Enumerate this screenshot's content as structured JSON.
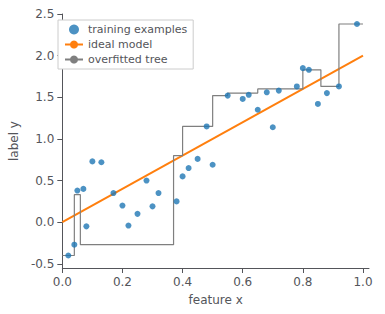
{
  "chart_data": {
    "type": "scatter",
    "xlabel": "feature x",
    "ylabel": "label y",
    "xlim": [
      0.0,
      1.02
    ],
    "ylim": [
      -0.55,
      2.5
    ],
    "xticks": [
      {
        "value": 0.0,
        "label": "0.0"
      },
      0.2,
      0.4,
      0.6,
      0.8,
      {
        "value": 1.0,
        "label": "1.0"
      }
    ],
    "yticks": [
      -0.5,
      {
        "value": 0.0,
        "label": "0.0"
      },
      0.5,
      {
        "value": 1.0,
        "label": "1.0"
      },
      1.5,
      {
        "value": 2.0,
        "label": "2.0"
      },
      2.5
    ],
    "grid": false,
    "legend": "upper left",
    "series": [
      {
        "name": "training examples",
        "type": "scatter",
        "marker": "circle",
        "color": "#1f77b4",
        "x": [
          0.02,
          0.04,
          0.05,
          0.07,
          0.08,
          0.1,
          0.13,
          0.17,
          0.2,
          0.22,
          0.25,
          0.28,
          0.3,
          0.32,
          0.38,
          0.4,
          0.42,
          0.45,
          0.48,
          0.5,
          0.55,
          0.6,
          0.62,
          0.65,
          0.68,
          0.7,
          0.72,
          0.78,
          0.8,
          0.82,
          0.85,
          0.88,
          0.92,
          0.98
        ],
        "values": [
          -0.4,
          -0.27,
          0.38,
          0.4,
          -0.05,
          0.73,
          0.72,
          0.35,
          0.2,
          -0.04,
          0.1,
          0.5,
          0.19,
          0.35,
          0.25,
          0.55,
          0.65,
          0.76,
          1.15,
          0.69,
          1.52,
          1.48,
          1.53,
          1.35,
          1.56,
          1.14,
          1.58,
          1.63,
          1.85,
          1.83,
          1.42,
          1.55,
          1.63,
          2.38
        ]
      },
      {
        "name": "ideal model",
        "type": "line",
        "color": "#ff7f0e",
        "x": [
          0.0,
          1.0
        ],
        "values": [
          0.0,
          2.0
        ]
      },
      {
        "name": "overfitted tree",
        "type": "line",
        "color": "#7f7f7f",
        "x": [
          0.0,
          0.04,
          0.04,
          0.06,
          0.06,
          0.37,
          0.37,
          0.4,
          0.4,
          0.5,
          0.5,
          0.55,
          0.55,
          0.65,
          0.65,
          0.8,
          0.8,
          0.86,
          0.86,
          0.92,
          0.92,
          1.0
        ],
        "values": [
          -0.4,
          -0.4,
          0.33,
          0.33,
          -0.27,
          -0.27,
          0.8,
          0.8,
          1.15,
          1.15,
          1.52,
          1.52,
          1.55,
          1.55,
          1.6,
          1.6,
          1.83,
          1.83,
          1.63,
          1.63,
          2.38,
          2.38
        ]
      }
    ]
  }
}
